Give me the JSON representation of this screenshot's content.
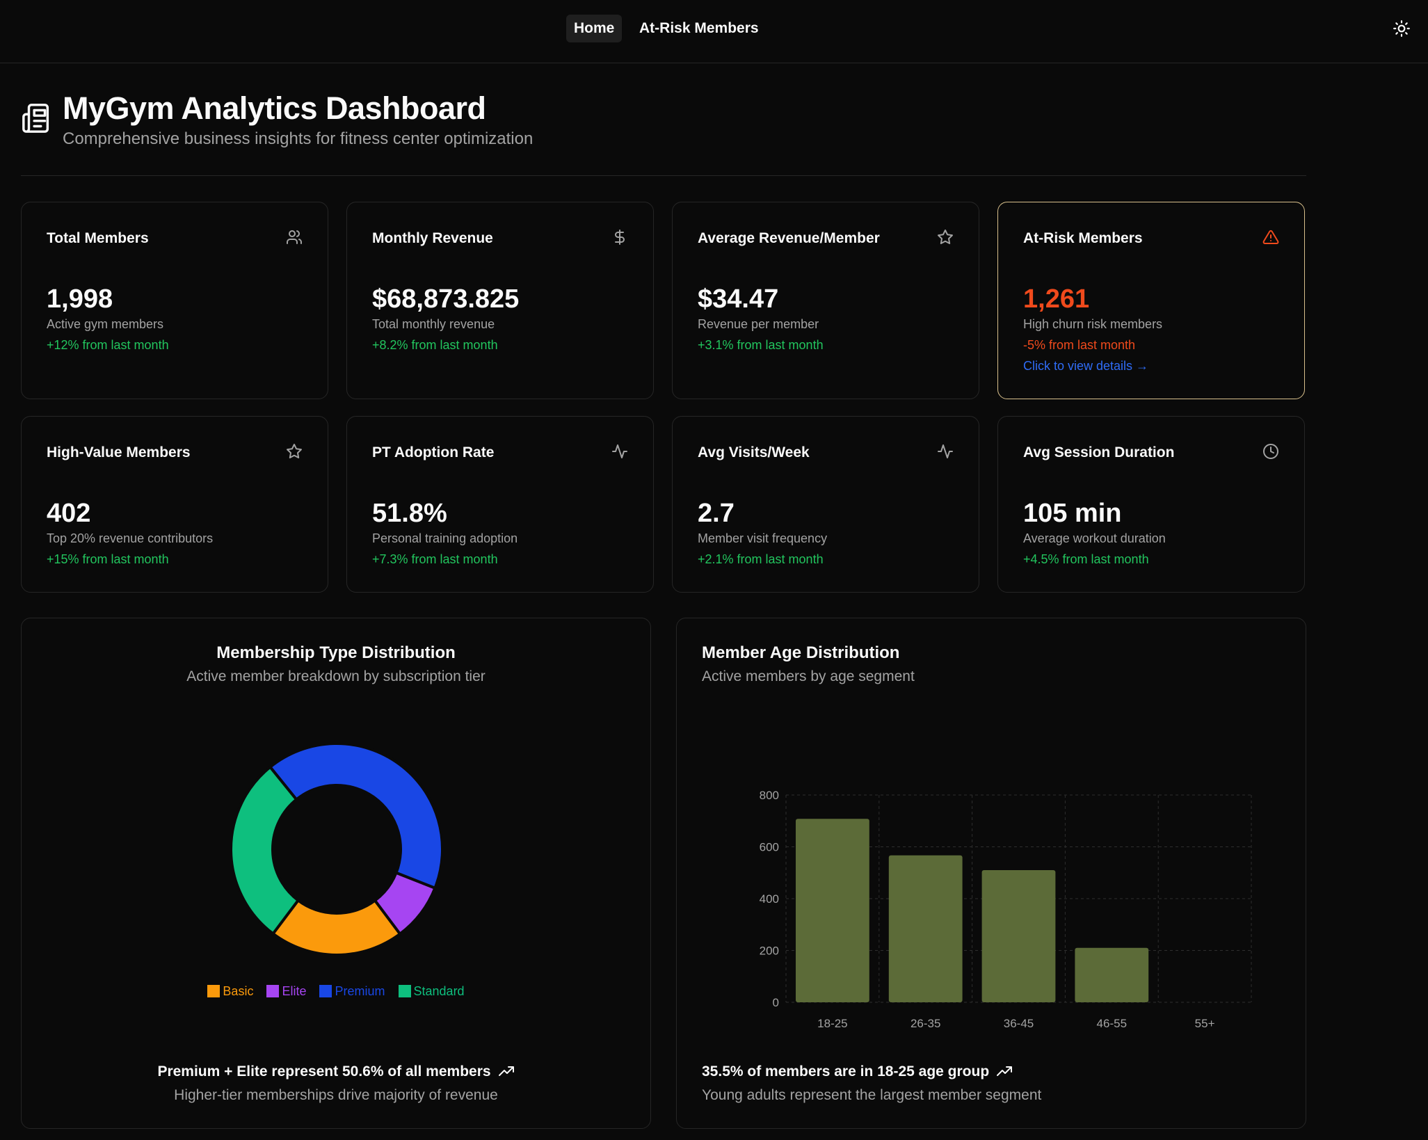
{
  "nav": {
    "home": "Home",
    "at_risk": "At-Risk Members",
    "theme_icon": "sun-icon"
  },
  "header": {
    "title": "MyGym Analytics Dashboard",
    "subtitle": "Comprehensive business insights for fitness center optimization",
    "icon": "document-icon"
  },
  "colors": {
    "positive": "#22c55e",
    "negative": "#f04a1c",
    "link": "#2f6cf6",
    "alert_border": "#d9c08c",
    "bar": "#5c6b38",
    "basic": "#fb9a0c",
    "elite": "#a645f2",
    "premium": "#1947e5",
    "standard": "#0ebf7e"
  },
  "cards": [
    {
      "title": "Total Members",
      "icon": "users-icon",
      "value": "1,998",
      "desc": "Active gym members",
      "change": "+12% from last month"
    },
    {
      "title": "Monthly Revenue",
      "icon": "dollar-icon",
      "value": "$68,873.825",
      "desc": "Total monthly revenue",
      "change": "+8.2% from last month"
    },
    {
      "title": "Average Revenue/Member",
      "icon": "star-icon",
      "value": "$34.47",
      "desc": "Revenue per member",
      "change": "+3.1% from last month"
    },
    {
      "title": "At-Risk Members",
      "icon": "warning-icon",
      "value": "1,261",
      "desc": "High churn risk members",
      "change": "-5% from last month",
      "link": "Click to view details →"
    },
    {
      "title": "High-Value Members",
      "icon": "star-icon",
      "value": "402",
      "desc": "Top 20% revenue contributors",
      "change": "+15% from last month"
    },
    {
      "title": "PT Adoption Rate",
      "icon": "activity-icon",
      "value": "51.8%",
      "desc": "Personal training adoption",
      "change": "+7.3% from last month"
    },
    {
      "title": "Avg Visits/Week",
      "icon": "activity-icon",
      "value": "2.7",
      "desc": "Member visit frequency",
      "change": "+2.1% from last month"
    },
    {
      "title": "Avg Session Duration",
      "icon": "clock-icon",
      "value": "105 min",
      "desc": "Average workout duration",
      "change": "+4.5% from last month"
    }
  ],
  "membership_panel": {
    "title": "Membership Type Distribution",
    "subtitle": "Active member breakdown by subscription tier",
    "footer_title": "Premium + Elite represent 50.6% of all members",
    "footer_sub": "Higher-tier memberships drive majority of revenue"
  },
  "age_panel": {
    "title": "Member Age Distribution",
    "subtitle": "Active members by age segment",
    "footer_title": "35.5% of members are in 18-25 age group",
    "footer_sub": "Young adults represent the largest member segment"
  },
  "chart_data": [
    {
      "type": "pie",
      "title": "Membership Type Distribution",
      "donut": true,
      "legend_position": "bottom",
      "categories": [
        "Basic",
        "Elite",
        "Premium",
        "Standard"
      ],
      "values": [
        20.5,
        8.8,
        41.8,
        28.9
      ],
      "colors": [
        "#fb9a0c",
        "#a645f2",
        "#1947e5",
        "#0ebf7e"
      ]
    },
    {
      "type": "bar",
      "title": "Member Age Distribution",
      "categories": [
        "18-25",
        "26-35",
        "36-45",
        "46-55",
        "55+"
      ],
      "values": [
        708,
        567,
        510,
        210,
        0
      ],
      "yticks": [
        "0",
        "200",
        "400",
        "600",
        "800"
      ],
      "ylim": [
        0,
        800
      ],
      "grid": true,
      "xlabel": "",
      "ylabel": ""
    }
  ]
}
